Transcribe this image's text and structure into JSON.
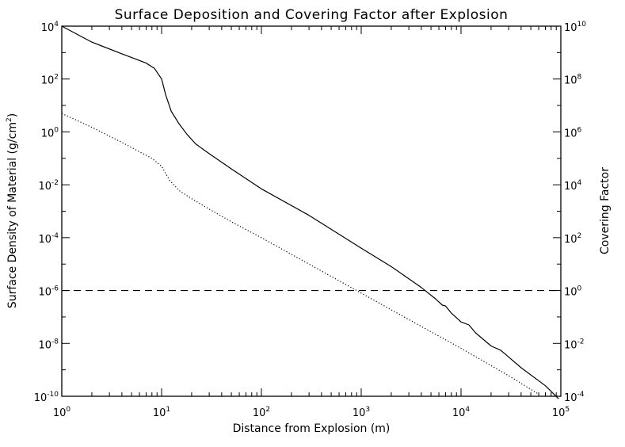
{
  "chart_data": {
    "type": "line",
    "title": "Surface Deposition and Covering Factor after Explosion",
    "xlabel": "Distance from Explosion (m)",
    "ylabel_parts": [
      "Surface Density of Material (g/cm",
      "2",
      ")"
    ],
    "y2label": "Covering Factor",
    "x_scale": "log",
    "y_scale": "log",
    "xlim": [
      1,
      100000
    ],
    "ylim": [
      1e-10,
      10000
    ],
    "y2lim": [
      0.0001,
      10000000000
    ],
    "x_ticks": [
      {
        "base": "10",
        "exp": "0",
        "value": 1
      },
      {
        "base": "10",
        "exp": "1",
        "value": 10
      },
      {
        "base": "10",
        "exp": "2",
        "value": 100
      },
      {
        "base": "10",
        "exp": "3",
        "value": 1000
      },
      {
        "base": "10",
        "exp": "4",
        "value": 10000
      },
      {
        "base": "10",
        "exp": "5",
        "value": 100000
      }
    ],
    "y_ticks": [
      {
        "base": "10",
        "exp": "4",
        "value": 10000.0
      },
      {
        "base": "10",
        "exp": "2",
        "value": 100.0
      },
      {
        "base": "10",
        "exp": "0",
        "value": 1
      },
      {
        "base": "10",
        "exp": "-2",
        "value": 0.01
      },
      {
        "base": "10",
        "exp": "-4",
        "value": 0.0001
      },
      {
        "base": "10",
        "exp": "-6",
        "value": 1e-06
      },
      {
        "base": "10",
        "exp": "-8",
        "value": 1e-08
      },
      {
        "base": "10",
        "exp": "-10",
        "value": 1e-10
      }
    ],
    "y2_ticks": [
      {
        "base": "10",
        "exp": "10",
        "value": 10000000000.0
      },
      {
        "base": "10",
        "exp": "8",
        "value": 100000000.0
      },
      {
        "base": "10",
        "exp": "6",
        "value": 1000000.0
      },
      {
        "base": "10",
        "exp": "4",
        "value": 10000.0
      },
      {
        "base": "10",
        "exp": "2",
        "value": 100.0
      },
      {
        "base": "10",
        "exp": "0",
        "value": 1
      },
      {
        "base": "10",
        "exp": "-2",
        "value": 0.01
      },
      {
        "base": "10",
        "exp": "-4",
        "value": 0.0001
      }
    ],
    "series": [
      {
        "name": "Surface Density of Material",
        "axis": "left",
        "style": "solid",
        "x": [
          1,
          2,
          4,
          7,
          8.5,
          10,
          11,
          12.5,
          15,
          18,
          22,
          30,
          50,
          100,
          300,
          1000,
          2000,
          3000,
          4000,
          5500,
          6500,
          7000,
          8000,
          10000,
          12000,
          14000,
          20000,
          25000,
          40000,
          70000,
          95000
        ],
        "y": [
          10000,
          2500,
          900,
          400,
          250,
          100,
          25,
          6,
          2,
          0.8,
          0.35,
          0.15,
          0.04,
          0.007,
          0.0007,
          4e-05,
          8e-06,
          2.8e-06,
          1.3e-06,
          5e-07,
          2.8e-07,
          2.6e-07,
          1.4e-07,
          6.5e-08,
          5e-08,
          2.5e-08,
          8e-09,
          5.5e-09,
          1.2e-09,
          2.5e-10,
          8e-11
        ]
      },
      {
        "name": "Covering Factor",
        "axis": "left",
        "style": "dotted",
        "x": [
          1,
          2,
          4,
          8,
          10,
          12,
          15,
          20,
          30,
          50,
          100,
          300,
          1000,
          3000,
          10000,
          30000,
          60000
        ],
        "y": [
          5,
          1.5,
          0.4,
          0.1,
          0.05,
          0.015,
          0.006,
          0.003,
          0.0012,
          0.0004,
          0.0001,
          1e-05,
          8e-07,
          8e-08,
          6.5e-09,
          6e-10,
          1.2e-10
        ]
      }
    ],
    "reference_lines": [
      {
        "name": "Covering Factor = 1",
        "axis": "left",
        "y": 1e-06,
        "style": "dashed"
      }
    ]
  }
}
